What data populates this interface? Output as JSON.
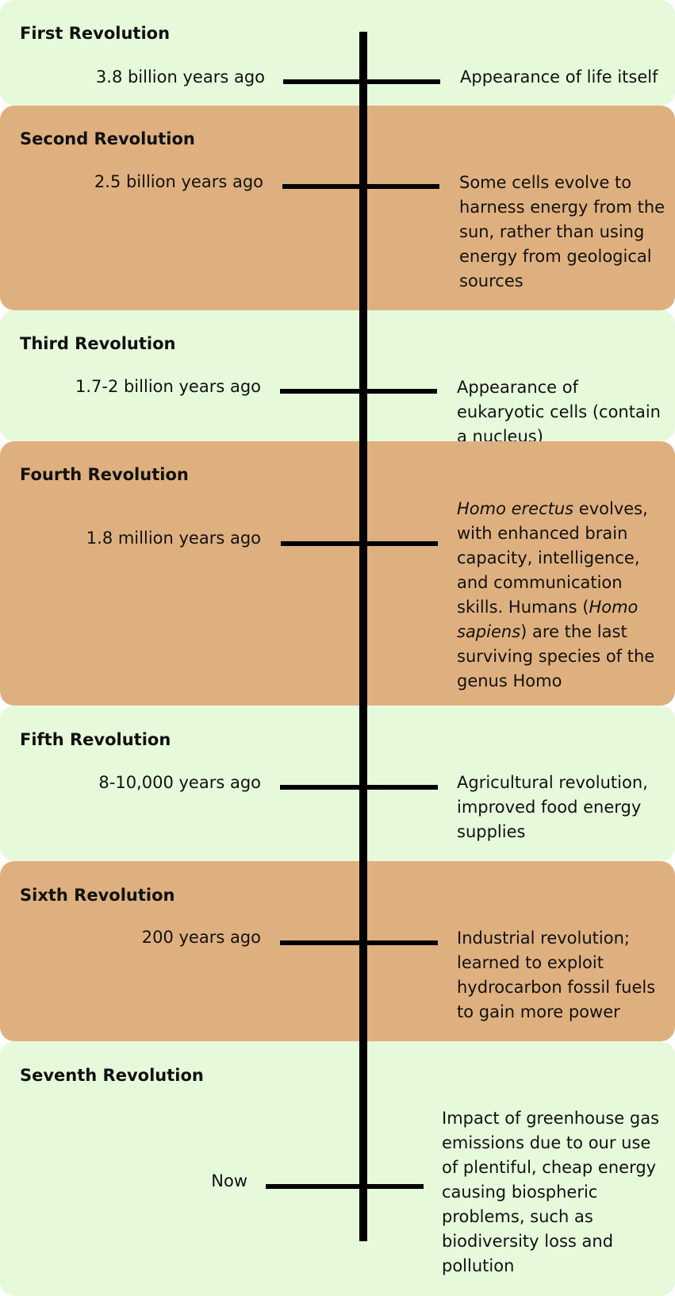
{
  "colors": {
    "light_band": "#e6fadb",
    "tan_band": "#dfb07f",
    "axis": "#000000"
  },
  "revolutions": [
    {
      "title": "First Revolution",
      "date": "3.8 billion years ago",
      "description": "Appearance of life itself"
    },
    {
      "title": "Second Revolution",
      "date": "2.5 billion years ago",
      "description": "Some cells evolve to harness energy from the sun, rather than using energy from geological sources"
    },
    {
      "title": "Third Revolution",
      "date": "1.7-2 billion years ago",
      "description": "Appearance of eukaryotic cells (contain a nucleus)"
    },
    {
      "title": "Fourth Revolution",
      "date": "1.8 million years ago",
      "description_parts": [
        "Homo erectus",
        " evolves, with enhanced brain capacity, intelligence, and communication skills.  Humans (",
        "Homo sapiens",
        ") are the last surviving species of the genus Homo"
      ]
    },
    {
      "title": "Fifth Revolution",
      "date": "8-10,000 years ago",
      "description": "Agricultural revolution, improved food energy supplies"
    },
    {
      "title": "Sixth Revolution",
      "date": "200 years ago",
      "description": "Industrial revolution; learned to exploit hydrocarbon fossil fuels to gain more power"
    },
    {
      "title": "Seventh Revolution",
      "date": "Now",
      "description": "Impact of greenhouse gas emissions due to our use of plentiful, cheap energy causing biospheric problems, such as biodiversity loss and pollution"
    }
  ]
}
